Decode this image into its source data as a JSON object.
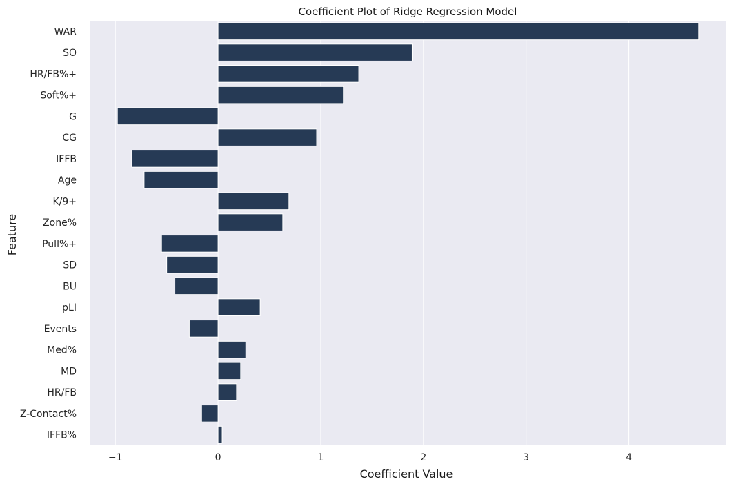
{
  "chart_data": {
    "type": "bar",
    "orientation": "horizontal",
    "title": "Coefficient Plot of Ridge Regression Model",
    "xlabel": "Coefficient Value",
    "ylabel": "Feature",
    "xlim": [
      -1.25,
      4.95
    ],
    "xticks": [
      -1,
      0,
      1,
      2,
      3,
      4
    ],
    "xtick_labels": [
      "−1",
      "0",
      "1",
      "2",
      "3",
      "4"
    ],
    "grid": true,
    "colors": {
      "bar": "#263a55",
      "bar_edge": "#ffffff",
      "plot_bg": "#eaeaf2",
      "grid": "#ffffff"
    },
    "categories": [
      "WAR",
      "SO",
      "HR/FB%+",
      "Soft%+",
      "G",
      "CG",
      "IFFB",
      "Age",
      "K/9+",
      "Zone%",
      "Pull%+",
      "SD",
      "BU",
      "pLI",
      "Events",
      "Med%",
      "MD",
      "HR/FB",
      "Z-Contact%",
      "IFFB%"
    ],
    "values": [
      4.68,
      1.89,
      1.37,
      1.22,
      -0.98,
      0.96,
      -0.84,
      -0.72,
      0.69,
      0.63,
      -0.55,
      -0.5,
      -0.42,
      0.41,
      -0.28,
      0.27,
      0.22,
      0.18,
      -0.16,
      0.04
    ]
  }
}
